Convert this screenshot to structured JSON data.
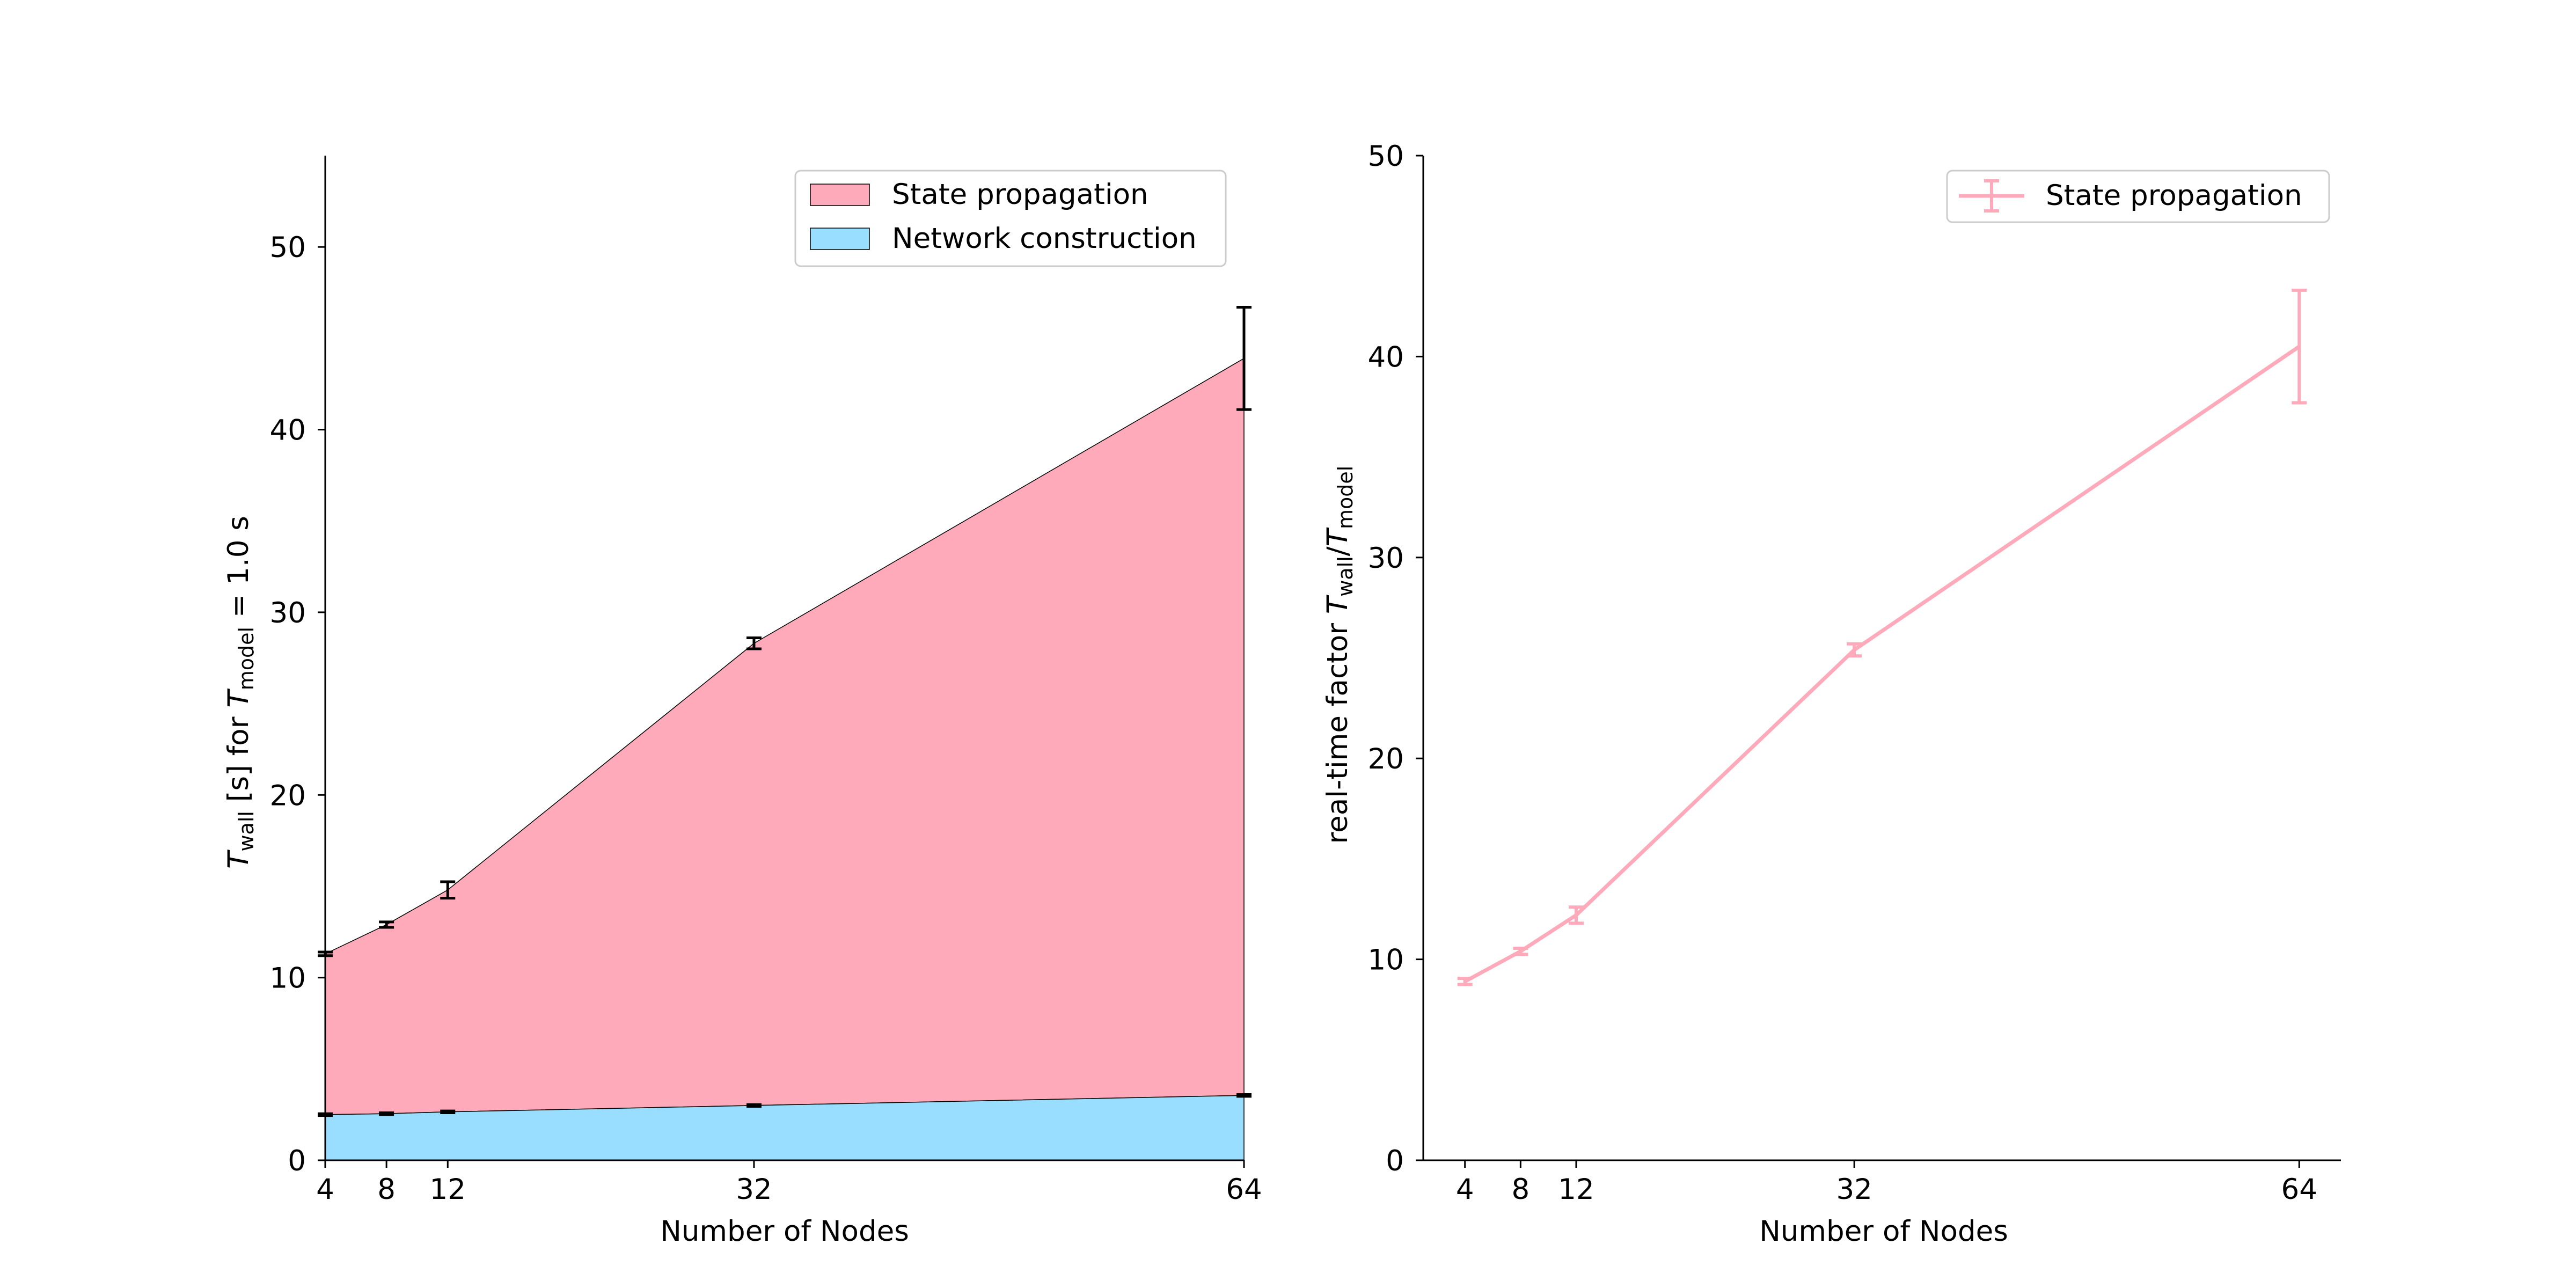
{
  "chart_data": [
    {
      "type": "area",
      "title": "",
      "stacked": true,
      "x": [
        4,
        8,
        12,
        32,
        64
      ],
      "xlabel": "Number of Nodes",
      "ylabel": "T_wall [s] for T_model = 1.0 s",
      "ylabel_parts": {
        "sym": "T",
        "sub1": "wall",
        "mid": " [s] for ",
        "sym2": "T",
        "sub2": "model",
        "tail": " = 1.0 s"
      },
      "xlim": [
        4,
        64
      ],
      "ylim": [
        0,
        55
      ],
      "xticks": [
        4,
        8,
        12,
        32,
        64
      ],
      "yticks": [
        0,
        10,
        20,
        30,
        40,
        50
      ],
      "grid": false,
      "legend_position": "top-right",
      "series": [
        {
          "name": "State propagation",
          "color": "#ffaabb",
          "totals": [
            11.3,
            12.9,
            14.8,
            28.3,
            43.9
          ],
          "errors": [
            0.1,
            0.15,
            0.45,
            0.3,
            2.8
          ]
        },
        {
          "name": "Network construction",
          "color": "#99ddff",
          "values": [
            2.5,
            2.55,
            2.65,
            3.0,
            3.55
          ],
          "errors": [
            0.05,
            0.05,
            0.05,
            0.05,
            0.05
          ]
        }
      ]
    },
    {
      "type": "line",
      "title": "",
      "x": [
        4,
        8,
        12,
        32,
        64
      ],
      "xlabel": "Number of Nodes",
      "ylabel": "real-time factor T_wall/T_model",
      "ylabel_parts": {
        "pre": "real-time factor ",
        "sym": "T",
        "sub1": "wall",
        "slash": "/",
        "sym2": "T",
        "sub2": "model"
      },
      "xlim": [
        1,
        67
      ],
      "ylim": [
        0,
        50
      ],
      "xticks": [
        4,
        8,
        12,
        32,
        64
      ],
      "yticks": [
        0,
        10,
        20,
        30,
        40,
        50
      ],
      "grid": false,
      "legend_position": "top-right",
      "series": [
        {
          "name": "State propagation",
          "color": "#ffaabb",
          "values": [
            8.9,
            10.4,
            12.2,
            25.4,
            40.5
          ],
          "errors": [
            0.15,
            0.15,
            0.4,
            0.3,
            2.8
          ]
        }
      ]
    }
  ]
}
